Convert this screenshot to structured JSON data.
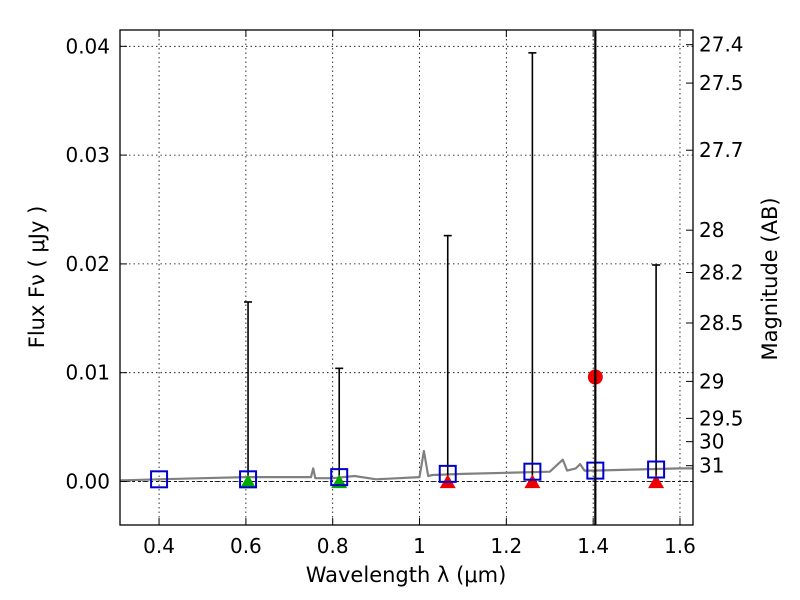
{
  "chart_data": {
    "type": "scatter",
    "title": "",
    "xlabel": "Wavelength  λ (μm)",
    "ylabel": "Flux  Fν  ( μJy )",
    "ylabel_right": "Magnitude (AB)",
    "xlim": [
      0.31,
      1.63
    ],
    "ylim": [
      -0.004,
      0.0415
    ],
    "grid": true,
    "x_ticks": [
      0.4,
      0.6,
      0.8,
      1.0,
      1.2,
      1.4,
      1.6
    ],
    "x_tick_labels": [
      "0.4",
      "0.6",
      "0.8",
      "1",
      "1.2",
      "1.4",
      "1.6"
    ],
    "y_ticks": [
      0.0,
      0.01,
      0.02,
      0.03,
      0.04
    ],
    "y_tick_labels": [
      "0.00",
      "0.01",
      "0.02",
      "0.03",
      "0.04"
    ],
    "right_axis_ticks": [
      {
        "label": "27.4",
        "flux": 0.04015
      },
      {
        "label": "27.5",
        "flux": 0.03662
      },
      {
        "label": "27.7",
        "flux": 0.03045
      },
      {
        "label": "28",
        "flux": 0.0231
      },
      {
        "label": "28.2",
        "flux": 0.01921
      },
      {
        "label": "28.5",
        "flux": 0.01457
      },
      {
        "label": "29",
        "flux": 0.0092
      },
      {
        "label": "29.5",
        "flux": 0.0058
      },
      {
        "label": "30",
        "flux": 0.00366
      },
      {
        "label": "31",
        "flux": 0.00145
      }
    ],
    "vertical_line_x": 1.405,
    "model_spectrum": {
      "name": "model spectrum",
      "color": "#808080",
      "x": [
        0.31,
        0.4,
        0.5,
        0.6,
        0.7,
        0.75,
        0.755,
        0.76,
        0.8,
        0.85,
        0.9,
        1.0,
        1.01,
        1.02,
        1.03,
        1.1,
        1.2,
        1.3,
        1.33,
        1.34,
        1.36,
        1.37,
        1.38,
        1.4,
        1.5,
        1.6,
        1.63
      ],
      "y": [
        0.0001,
        0.0002,
        0.0003,
        0.0004,
        0.0004,
        0.0004,
        0.0012,
        0.0003,
        0.0003,
        0.0005,
        0.0002,
        0.0004,
        0.0028,
        0.0005,
        0.0006,
        0.0007,
        0.0008,
        0.0009,
        0.002,
        0.001,
        0.0012,
        0.0016,
        0.001,
        0.001,
        0.0011,
        0.0012,
        0.0012
      ]
    },
    "model_photometry": {
      "name": "model photometry",
      "marker": "open-square",
      "color": "#0000cc",
      "x": [
        0.4,
        0.605,
        0.815,
        1.065,
        1.26,
        1.405,
        1.545
      ],
      "y": [
        0.0002,
        0.0002,
        0.0004,
        0.0007,
        0.0009,
        0.001,
        0.0011
      ]
    },
    "upper_limits": {
      "name": "upper limits",
      "x": [
        0.605,
        0.815,
        1.065,
        1.26,
        1.545
      ],
      "y_low": [
        0.0,
        0.0,
        0.0,
        0.0,
        0.0
      ],
      "y_high": [
        0.0165,
        0.0104,
        0.0226,
        0.0394,
        0.0199
      ]
    },
    "green_points": {
      "name": "green triangles",
      "color": "#00aa00",
      "x": [
        0.605,
        0.815
      ],
      "y": [
        0.0,
        0.0
      ]
    },
    "red_triangles": {
      "name": "red triangles",
      "color": "#ee0000",
      "x": [
        1.065,
        1.26,
        1.545
      ],
      "y": [
        0.0,
        0.0,
        0.0
      ]
    },
    "detection": {
      "name": "detection",
      "color": "#ee0000",
      "x": 1.405,
      "y": 0.0096
    }
  }
}
